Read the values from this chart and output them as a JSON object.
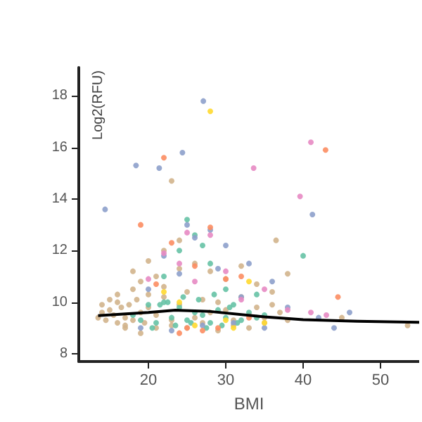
{
  "chart_data": {
    "type": "scatter",
    "xlabel": "BMI",
    "ylabel": "Log2(RFU)",
    "xlim": [
      11,
      55
    ],
    "ylim": [
      7.7,
      19.1
    ],
    "xticks": [
      20,
      30,
      40,
      50
    ],
    "yticks": [
      8,
      10,
      12,
      14,
      16,
      18
    ],
    "grid": false,
    "marker": "circle",
    "series": [
      {
        "color": "#d2b48c",
        "x": [
          13.5,
          14,
          14.5,
          15,
          15.5,
          16,
          16.5,
          17,
          17.5,
          18,
          18.5,
          19,
          19.5,
          20,
          21,
          22,
          23,
          24,
          25,
          26,
          27,
          28,
          29,
          30,
          31,
          32,
          33,
          34,
          35,
          36,
          37,
          38,
          14,
          15,
          16,
          17,
          18,
          19,
          20,
          21,
          22,
          24,
          26,
          28,
          30,
          32,
          34,
          36,
          17,
          19,
          21,
          23,
          25,
          27,
          29,
          31,
          33,
          35,
          16,
          18,
          20,
          22,
          24,
          36.5,
          23,
          53.5,
          38,
          45
        ],
        "values": [
          9.4,
          9.6,
          9.3,
          9.7,
          9.5,
          9.2,
          9.8,
          9.4,
          9.9,
          9.3,
          10.1,
          9.6,
          9.2,
          9.8,
          9.5,
          10.2,
          9.3,
          9.9,
          10.4,
          9.4,
          10.1,
          9.6,
          10.0,
          9.7,
          9.3,
          10.2,
          9.5,
          9.8,
          9.4,
          9.9,
          9.6,
          9.3,
          9.9,
          10.1,
          10.0,
          9.0,
          10.5,
          10.8,
          10.3,
          11.0,
          10.6,
          11.3,
          11.5,
          11.2,
          10.9,
          11.4,
          10.7,
          10.4,
          9.1,
          8.8,
          9.0,
          9.1,
          9.0,
          9.2,
          8.9,
          9.1,
          9.0,
          9.2,
          10.3,
          11.2,
          11.6,
          12.0,
          12.4,
          12.4,
          14.7,
          9.1,
          11.1,
          9.4
        ]
      },
      {
        "color": "#66c2a5",
        "x": [
          18,
          19,
          20,
          21,
          22,
          23,
          24,
          25,
          26,
          27,
          28,
          29,
          30,
          31,
          32,
          33,
          34,
          35,
          20.5,
          21.5,
          22.5,
          23.5,
          24.5,
          25.5,
          26.5,
          27.5,
          28.5,
          29.5,
          30.5,
          31.5,
          22,
          24,
          26,
          28,
          30,
          25,
          27,
          34,
          40
        ],
        "values": [
          9.5,
          9.3,
          9.9,
          9.2,
          10.0,
          9.4,
          9.8,
          9.3,
          9.6,
          9.5,
          9.2,
          9.7,
          9.4,
          9.9,
          9.3,
          9.6,
          9.4,
          9.5,
          9.0,
          9.9,
          10.0,
          9.1,
          10.2,
          9.2,
          10.1,
          9.0,
          10.3,
          9.1,
          9.8,
          9.2,
          11.0,
          12.0,
          12.6,
          11.5,
          10.5,
          13.2,
          12.2,
          10.3,
          11.8
        ]
      },
      {
        "color": "#8da0cb",
        "x": [
          27.1,
          24.4,
          18.4,
          21.4,
          14.4,
          41.2,
          25,
          26,
          30,
          22,
          28,
          33,
          36,
          20,
          24,
          29,
          32,
          38,
          42,
          46,
          19,
          23,
          27,
          31,
          35,
          44
        ],
        "values": [
          17.8,
          15.8,
          15.3,
          15.2,
          13.6,
          13.4,
          13.0,
          12.5,
          12.2,
          11.8,
          12.8,
          11.5,
          10.8,
          10.5,
          11.1,
          11.3,
          10.2,
          9.8,
          9.4,
          9.6,
          9.0,
          8.9,
          9.1,
          9.2,
          9.0,
          9.0
        ]
      },
      {
        "color": "#fc8d62",
        "x": [
          42.9,
          22.0,
          19,
          23,
          26,
          28,
          30,
          32,
          44.5,
          25,
          27,
          21,
          24,
          29,
          33
        ],
        "values": [
          15.9,
          15.6,
          13.0,
          12.3,
          11.4,
          12.9,
          10.9,
          11.0,
          10.2,
          9.0,
          8.9,
          10.7,
          8.8,
          9.0,
          9.4
        ]
      },
      {
        "color": "#e78ac3",
        "x": [
          41.0,
          33.6,
          39.6,
          25,
          28,
          22,
          30,
          35,
          38,
          41,
          43,
          26,
          24,
          32,
          20
        ],
        "values": [
          16.2,
          15.2,
          14.1,
          12.7,
          12.6,
          11.9,
          11.2,
          10.5,
          9.7,
          9.6,
          9.5,
          10.8,
          11.5,
          10.1,
          10.9
        ]
      },
      {
        "color": "#ffd92f",
        "x": [
          28.0,
          33,
          30,
          24,
          26,
          22,
          35,
          31
        ],
        "values": [
          17.4,
          10.8,
          9.3,
          10.0,
          9.1,
          10.4,
          9.2,
          9.0
        ]
      },
      {
        "type": "line",
        "marker": "none",
        "color": "#000000",
        "x": [
          13.5,
          20,
          23.5,
          28,
          35,
          40,
          47,
          55
        ],
        "values": [
          9.48,
          9.6,
          9.69,
          9.64,
          9.43,
          9.32,
          9.26,
          9.22
        ]
      }
    ]
  }
}
